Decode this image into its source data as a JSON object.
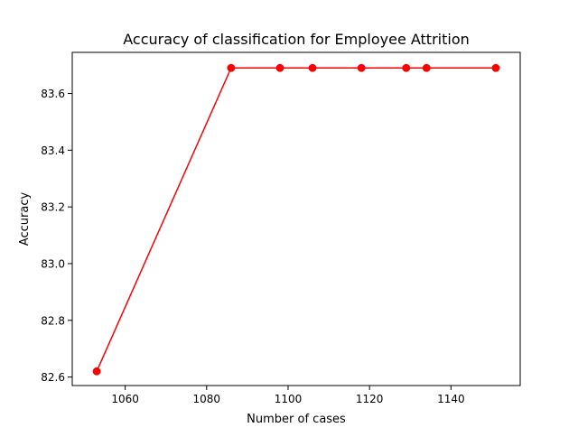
{
  "chart_data": {
    "type": "line",
    "title": "Accuracy of classification for Employee Attrition",
    "xlabel": "Number of cases",
    "ylabel": "Accuracy",
    "xlim": [
      1047,
      1157
    ],
    "ylim": [
      82.57,
      83.745
    ],
    "xticks": [
      1060,
      1080,
      1100,
      1120,
      1140
    ],
    "xtick_labels": [
      "1060",
      "1080",
      "1100",
      "1120",
      "1140"
    ],
    "yticks": [
      82.6,
      82.8,
      83.0,
      83.2,
      83.4,
      83.6
    ],
    "ytick_labels": [
      "82.6",
      "82.8",
      "83.0",
      "83.2",
      "83.4",
      "83.6"
    ],
    "grid": false,
    "series": [
      {
        "color": "#ff0000",
        "marker": "circle",
        "x": [
          1053,
          1086,
          1098,
          1106,
          1118,
          1129,
          1134,
          1151
        ],
        "y": [
          82.62,
          83.69,
          83.69,
          83.69,
          83.69,
          83.69,
          83.69,
          83.69
        ]
      }
    ]
  }
}
